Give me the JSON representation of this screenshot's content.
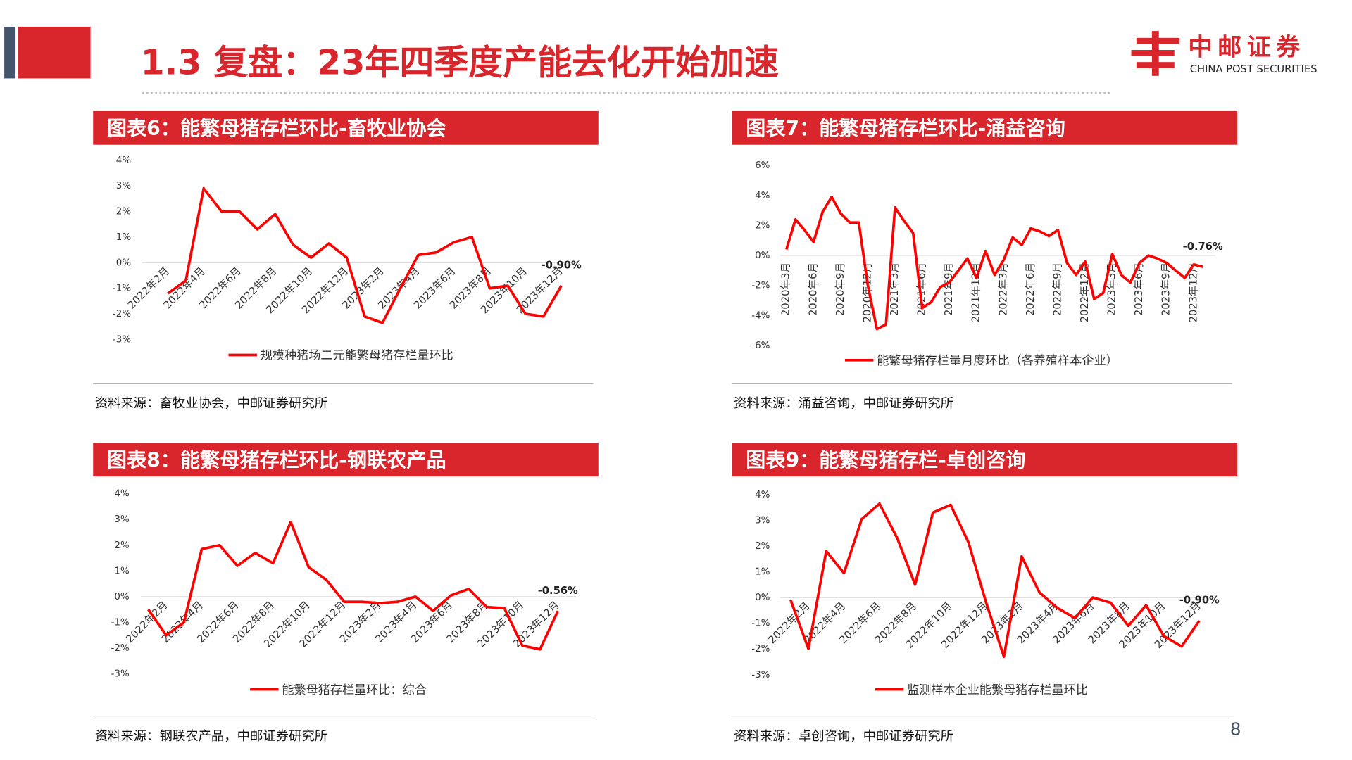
{
  "header": {
    "title": "1.3 复盘：23年四季度产能去化开始加速"
  },
  "logo": {
    "name": "中邮证券",
    "english": "CHINA POST SECURITIES"
  },
  "page_number": "8",
  "chart_data": [
    {
      "type": "line",
      "title": "图表6：能繁母猪存栏环比-畜牧业协会",
      "categories": [
        null,
        "2022年2月",
        null,
        "2022年4月",
        null,
        "2022年6月",
        null,
        "2022年8月",
        null,
        "2022年10月",
        null,
        "2022年12月",
        null,
        "2023年2月",
        null,
        "2023年4月",
        null,
        "2023年6月",
        null,
        "2023年8月",
        null,
        "2023年10月",
        null,
        "2023年12月"
      ],
      "series": [
        {
          "name": "规模种猪场二元能繁母猪存栏量环比",
          "color": "#ff0000",
          "values": [
            null,
            -1.2,
            -0.7,
            2.9,
            2.0,
            2.0,
            1.3,
            1.9,
            0.7,
            0.2,
            0.75,
            0.2,
            -2.1,
            -2.35,
            -1.0,
            0.3,
            0.4,
            0.8,
            1.0,
            -1.0,
            -0.9,
            -2.0,
            -2.1,
            -0.9
          ],
          "value_labels": [
            null,
            null,
            null,
            null,
            null,
            null,
            null,
            null,
            null,
            null,
            null,
            null,
            null,
            null,
            null,
            null,
            null,
            null,
            null,
            null,
            null,
            null,
            null,
            "-0.90%"
          ]
        }
      ],
      "ylim": [
        -3,
        4
      ],
      "yticks": [
        {
          "value": 4,
          "label": "4%"
        },
        {
          "value": 3,
          "label": "3%"
        },
        {
          "value": 2,
          "label": "2%"
        },
        {
          "value": 1,
          "label": "1%"
        },
        {
          "value": 0,
          "label": "0%"
        },
        {
          "value": -1,
          "label": "-1%"
        },
        {
          "value": -2,
          "label": "-2%"
        },
        {
          "value": -3,
          "label": "-3%"
        }
      ],
      "source": "资料来源：畜牧业协会，中邮证券研究所"
    },
    {
      "type": "line",
      "title": "图表7：能繁母猪存栏环比-涌益咨询",
      "categories": [
        "2020年3月",
        null,
        null,
        "2020年6月",
        null,
        null,
        "2020年9月",
        null,
        null,
        "2020年12月",
        null,
        null,
        "2021年3月",
        null,
        null,
        "2021年6月",
        null,
        null,
        "2021年9月",
        null,
        null,
        "2021年12月",
        null,
        null,
        "2022年3月",
        null,
        null,
        "2022年6月",
        null,
        null,
        "2022年9月",
        null,
        null,
        "2022年12月",
        null,
        null,
        "2023年3月",
        null,
        null,
        "2023年6月",
        null,
        null,
        "2023年9月",
        null,
        null,
        "2023年12月",
        null
      ],
      "series": [
        {
          "name": "能繁母猪存栏量月度环比（各养殖样本企业）",
          "color": "#ff0000",
          "values": [
            0.4,
            2.4,
            1.7,
            0.9,
            2.9,
            3.9,
            2.8,
            2.2,
            2.2,
            -2.0,
            -4.9,
            -4.6,
            3.2,
            2.3,
            1.5,
            -3.5,
            -3.1,
            -2.1,
            -1.8,
            -1.0,
            -0.2,
            -1.5,
            0.3,
            -1.3,
            -0.3,
            1.2,
            0.7,
            1.8,
            1.6,
            1.3,
            1.7,
            -0.5,
            -1.3,
            -0.4,
            -2.9,
            -2.5,
            0.1,
            -1.3,
            -1.8,
            -0.5,
            0.0,
            -0.2,
            -0.5,
            -1.0,
            -1.5,
            -0.6,
            -0.76
          ],
          "value_labels": [
            null,
            null,
            null,
            null,
            null,
            null,
            null,
            null,
            null,
            null,
            null,
            null,
            null,
            null,
            null,
            null,
            null,
            null,
            null,
            null,
            null,
            null,
            null,
            null,
            null,
            null,
            null,
            null,
            null,
            null,
            null,
            null,
            null,
            null,
            null,
            null,
            null,
            null,
            null,
            null,
            null,
            null,
            null,
            null,
            null,
            null,
            "-0.76%"
          ]
        }
      ],
      "ylim": [
        -6,
        6
      ],
      "yticks": [
        {
          "value": 6,
          "label": "6%"
        },
        {
          "value": 4,
          "label": "4%"
        },
        {
          "value": 2,
          "label": "2%"
        },
        {
          "value": 0,
          "label": "0%"
        },
        {
          "value": -2,
          "label": "-2%"
        },
        {
          "value": -4,
          "label": "-4%"
        },
        {
          "value": -6,
          "label": "-6%"
        }
      ],
      "source": "资料来源：涌益咨询，中邮证券研究所"
    },
    {
      "type": "line",
      "title": "图表8：能繁母猪存栏环比-钢联农产品",
      "categories": [
        null,
        "2022年2月",
        null,
        "2022年4月",
        null,
        "2022年6月",
        null,
        "2022年8月",
        null,
        "2022年10月",
        null,
        "2022年12月",
        null,
        "2023年2月",
        null,
        "2023年4月",
        null,
        "2023年6月",
        null,
        "2023年8月",
        null,
        "2023年10月",
        null,
        "2023年12月"
      ],
      "series": [
        {
          "name": "能繁母猪存栏量环比：综合",
          "color": "#ff0000",
          "values": [
            -0.5,
            -1.5,
            -1.0,
            1.85,
            2.0,
            1.2,
            1.7,
            1.3,
            2.9,
            1.15,
            0.65,
            -0.2,
            -0.2,
            -0.25,
            -0.2,
            0.0,
            -0.55,
            0.05,
            0.3,
            -0.4,
            -0.45,
            -1.9,
            -2.05,
            -0.56
          ],
          "value_labels": [
            null,
            null,
            null,
            null,
            null,
            null,
            null,
            null,
            null,
            null,
            null,
            null,
            null,
            null,
            null,
            null,
            null,
            null,
            null,
            null,
            null,
            null,
            null,
            "-0.56%"
          ]
        }
      ],
      "ylim": [
        -3,
        4
      ],
      "yticks": [
        {
          "value": 4,
          "label": "4%"
        },
        {
          "value": 3,
          "label": "3%"
        },
        {
          "value": 2,
          "label": "2%"
        },
        {
          "value": 1,
          "label": "1%"
        },
        {
          "value": 0,
          "label": "0%"
        },
        {
          "value": -1,
          "label": "-1%"
        },
        {
          "value": -2,
          "label": "-2%"
        },
        {
          "value": -3,
          "label": "-3%"
        }
      ],
      "source": "资料来源：钢联农产品，中邮证券研究所"
    },
    {
      "type": "line",
      "title": "图表9：能繁母猪存栏-卓创咨询",
      "categories": [
        null,
        "2022年2月",
        null,
        "2022年4月",
        null,
        "2022年6月",
        null,
        "2022年8月",
        null,
        "2022年10月",
        null,
        "2022年12月",
        null,
        "2023年2月",
        null,
        "2023年4月",
        null,
        "2023年6月",
        null,
        "2023年8月",
        null,
        "2023年10月",
        null,
        "2023年12月"
      ],
      "series": [
        {
          "name": "监测样本企业能繁母猪存栏量环比",
          "color": "#ff0000",
          "values": [
            -0.1,
            -2.0,
            1.8,
            0.95,
            3.05,
            3.65,
            2.3,
            0.5,
            3.3,
            3.6,
            2.15,
            -0.2,
            -2.3,
            1.6,
            0.2,
            -0.4,
            -0.8,
            0.0,
            -0.2,
            -1.1,
            -0.3,
            -1.5,
            -1.9,
            -0.9
          ],
          "value_labels": [
            null,
            null,
            null,
            null,
            null,
            null,
            null,
            null,
            null,
            null,
            null,
            null,
            null,
            null,
            null,
            null,
            null,
            null,
            null,
            null,
            null,
            null,
            null,
            "-0.90%"
          ]
        }
      ],
      "ylim": [
        -3,
        4
      ],
      "yticks": [
        {
          "value": 4,
          "label": "4%"
        },
        {
          "value": 3,
          "label": "3%"
        },
        {
          "value": 2,
          "label": "2%"
        },
        {
          "value": 1,
          "label": "1%"
        },
        {
          "value": 0,
          "label": "0%"
        },
        {
          "value": -1,
          "label": "-1%"
        },
        {
          "value": -2,
          "label": "-2%"
        },
        {
          "value": -3,
          "label": "-3%"
        }
      ],
      "source": "资料来源：卓创咨询，中邮证券研究所"
    }
  ]
}
